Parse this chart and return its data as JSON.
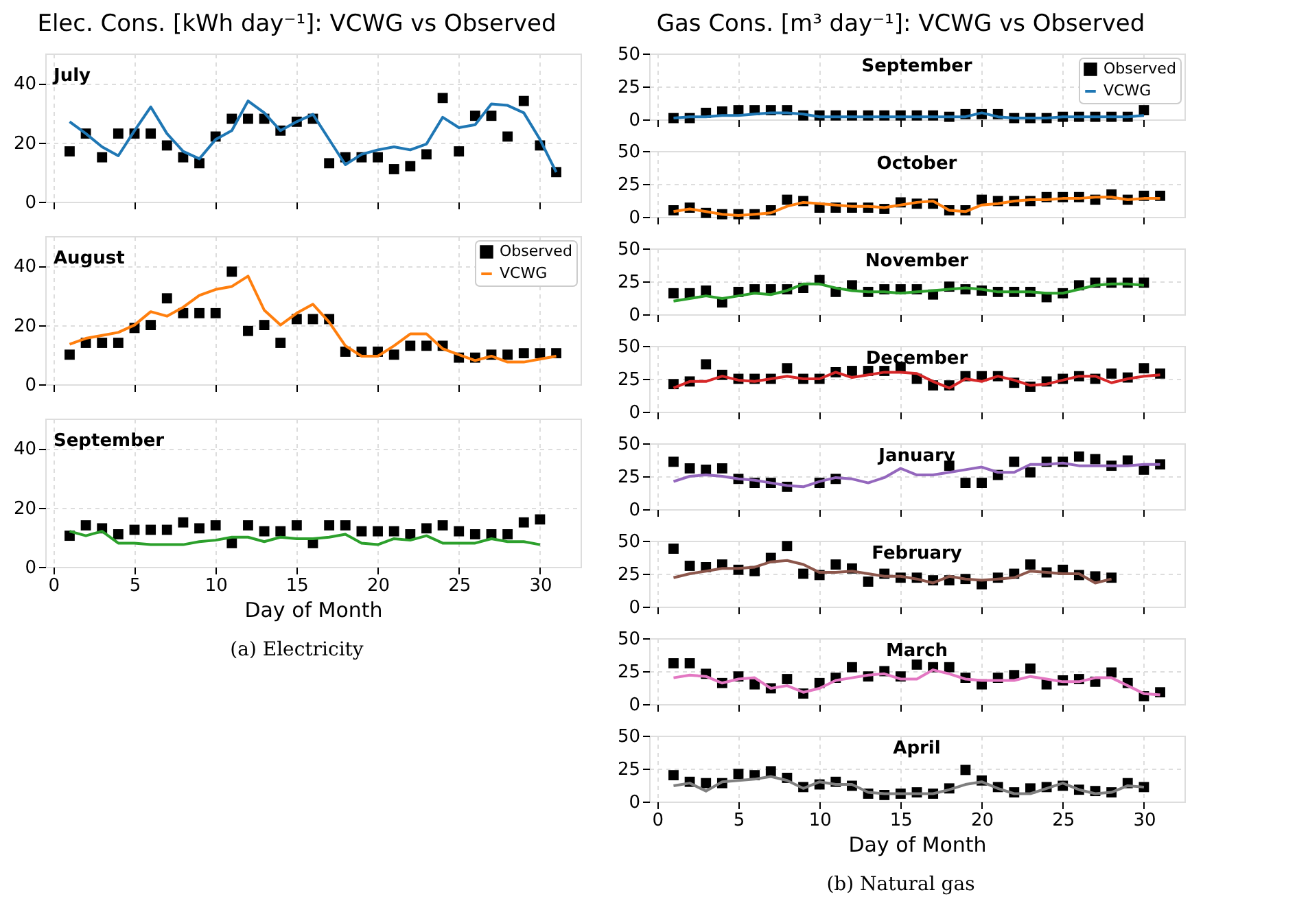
{
  "chart_data": [
    {
      "type": "line",
      "title": "July",
      "annotations": [
        "Elec. Cons. [kWh day⁻¹]: VCWG vs Observed"
      ],
      "x": [
        1,
        2,
        3,
        4,
        5,
        6,
        7,
        8,
        9,
        10,
        11,
        12,
        13,
        14,
        15,
        16,
        17,
        18,
        19,
        20,
        21,
        22,
        23,
        24,
        25,
        26,
        27,
        28,
        29,
        30,
        31
      ],
      "xlim": [
        -0.5,
        32.5
      ],
      "xticks": [
        0,
        5,
        10,
        15,
        20,
        25,
        30
      ],
      "ylim": [
        0,
        50
      ],
      "yticks": [
        0,
        20,
        40
      ],
      "grid": true,
      "tick_labels": "y",
      "series": [
        {
          "type": "scatter",
          "marker": "square",
          "color": "#000000",
          "values": [
            17,
            23,
            15,
            23,
            23,
            23,
            19,
            15,
            13,
            22,
            28,
            28,
            28,
            24,
            27,
            28,
            13,
            15,
            15,
            15,
            11,
            12,
            16,
            35,
            17,
            29,
            29,
            22,
            34,
            19,
            10
          ]
        },
        {
          "type": "line",
          "color": "#1f77b4",
          "values": [
            27,
            23,
            18.5,
            15.5,
            24,
            32,
            23,
            17,
            14.5,
            21,
            24,
            34,
            30,
            24,
            27,
            29.5,
            21,
            12.5,
            16,
            17.5,
            18.5,
            17.5,
            19.5,
            28.5,
            25,
            26,
            33,
            32.5,
            30,
            21,
            10
          ]
        }
      ]
    },
    {
      "type": "line",
      "title": "August",
      "x": [
        1,
        2,
        3,
        4,
        5,
        6,
        7,
        8,
        9,
        10,
        11,
        12,
        13,
        14,
        15,
        16,
        17,
        18,
        19,
        20,
        21,
        22,
        23,
        24,
        25,
        26,
        27,
        28,
        29,
        30,
        31
      ],
      "xlim": [
        -0.5,
        32.5
      ],
      "xticks": [
        0,
        5,
        10,
        15,
        20,
        25,
        30
      ],
      "ylim": [
        0,
        50
      ],
      "yticks": [
        0,
        20,
        40
      ],
      "grid": true,
      "tick_labels": "y",
      "legend": "top right",
      "series": [
        {
          "name": "Observed",
          "type": "scatter",
          "marker": "square",
          "color": "#000000",
          "values": [
            10,
            14,
            14,
            14,
            19,
            20,
            29,
            24,
            24,
            24,
            38,
            18,
            20,
            14,
            22,
            22,
            22,
            11,
            11,
            11,
            10,
            13,
            13,
            13,
            9,
            9,
            10,
            10,
            10.5,
            10.5,
            10.5
          ]
        },
        {
          "name": "VCWG",
          "type": "line",
          "color": "#ff7f0e",
          "values": [
            13.5,
            15.5,
            16.5,
            17.5,
            20,
            24.5,
            23,
            26,
            30,
            32,
            33,
            36.5,
            25,
            20,
            24,
            27,
            21,
            13,
            9.5,
            9.5,
            13,
            17,
            17,
            12,
            10,
            8,
            9.5,
            7.5,
            7.5,
            8.5,
            9.5
          ]
        }
      ]
    },
    {
      "type": "line",
      "title": "September",
      "xlabel": "Day of Month",
      "annotations": [
        "(a) Electricity"
      ],
      "x": [
        1,
        2,
        3,
        4,
        5,
        6,
        7,
        8,
        9,
        10,
        11,
        12,
        13,
        14,
        15,
        16,
        17,
        18,
        19,
        20,
        21,
        22,
        23,
        24,
        25,
        26,
        27,
        28,
        29,
        30
      ],
      "xlim": [
        -0.5,
        32.5
      ],
      "xticks": [
        0,
        5,
        10,
        15,
        20,
        25,
        30
      ],
      "ylim": [
        0,
        50
      ],
      "yticks": [
        0,
        20,
        40
      ],
      "grid": true,
      "series": [
        {
          "type": "scatter",
          "marker": "square",
          "color": "#000000",
          "values": [
            10.5,
            14,
            13,
            11,
            12.5,
            12.5,
            12.5,
            15,
            13,
            14,
            8,
            14,
            12,
            12,
            14,
            8,
            14,
            14,
            12,
            12,
            12,
            11,
            13,
            14,
            12,
            11,
            11,
            11,
            15,
            16
          ]
        },
        {
          "type": "line",
          "color": "#2ca02c",
          "values": [
            12,
            10.5,
            12,
            8,
            8,
            7.5,
            7.5,
            7.5,
            8.5,
            9,
            10,
            10,
            8.5,
            10,
            9.5,
            9.5,
            10,
            11,
            8,
            7.5,
            9.5,
            9,
            10.5,
            8,
            8,
            8,
            9.5,
            8.5,
            8.5,
            7.5
          ]
        }
      ]
    },
    {
      "type": "line",
      "title": "September",
      "annotations": [
        "Gas Cons. [m³ day⁻¹]: VCWG vs Observed"
      ],
      "x": [
        1,
        2,
        3,
        4,
        5,
        6,
        7,
        8,
        9,
        10,
        11,
        12,
        13,
        14,
        15,
        16,
        17,
        18,
        19,
        20,
        21,
        22,
        23,
        24,
        25,
        26,
        27,
        28,
        29,
        30
      ],
      "xlim": [
        -0.5,
        32.5
      ],
      "xticks": [
        0,
        5,
        10,
        15,
        20,
        25,
        30
      ],
      "ylim": [
        0,
        50
      ],
      "yticks": [
        0,
        25,
        50
      ],
      "grid": true,
      "tick_labels": "y",
      "legend": "top right",
      "series": [
        {
          "name": "Observed",
          "type": "scatter",
          "marker": "square",
          "color": "#000000",
          "values": [
            1,
            1,
            5,
            6,
            7,
            7,
            7,
            7,
            3,
            3,
            3,
            3,
            3,
            3,
            3,
            3,
            3,
            2,
            4,
            4,
            4,
            1,
            1,
            1,
            2,
            2,
            2,
            2,
            2,
            7
          ]
        },
        {
          "name": "VCWG",
          "type": "line",
          "color": "#1f77b4",
          "values": [
            1,
            2,
            2,
            3,
            3,
            4,
            5,
            5,
            4,
            2,
            2,
            2,
            2,
            2,
            2,
            2,
            2,
            2,
            2,
            5,
            2,
            1,
            1,
            1,
            2,
            2,
            2,
            2,
            2,
            3
          ]
        }
      ]
    },
    {
      "type": "line",
      "title": "October",
      "x": [
        1,
        2,
        3,
        4,
        5,
        6,
        7,
        8,
        9,
        10,
        11,
        12,
        13,
        14,
        15,
        16,
        17,
        18,
        19,
        20,
        21,
        22,
        23,
        24,
        25,
        26,
        27,
        28,
        29,
        30,
        31
      ],
      "xlim": [
        -0.5,
        32.5
      ],
      "xticks": [
        0,
        5,
        10,
        15,
        20,
        25,
        30
      ],
      "ylim": [
        0,
        50
      ],
      "yticks": [
        0,
        25,
        50
      ],
      "grid": true,
      "tick_labels": "y",
      "series": [
        {
          "type": "scatter",
          "marker": "square",
          "color": "#000000",
          "values": [
            5,
            7,
            3,
            2,
            2,
            2,
            5,
            13,
            12,
            7,
            7,
            7,
            7,
            6,
            11,
            10,
            10,
            5,
            5,
            13,
            12,
            12,
            12,
            15,
            15,
            15,
            13,
            17,
            13,
            16,
            16
          ]
        },
        {
          "type": "line",
          "color": "#ff7f0e",
          "values": [
            4,
            6,
            4,
            2,
            1,
            2,
            3,
            8,
            11,
            10,
            9,
            8,
            8,
            7,
            9,
            11,
            12,
            5,
            4,
            9,
            10,
            12,
            13,
            13,
            14,
            14,
            15,
            15,
            13,
            14,
            14
          ]
        }
      ]
    },
    {
      "type": "line",
      "title": "November",
      "x": [
        1,
        2,
        3,
        4,
        5,
        6,
        7,
        8,
        9,
        10,
        11,
        12,
        13,
        14,
        15,
        16,
        17,
        18,
        19,
        20,
        21,
        22,
        23,
        24,
        25,
        26,
        27,
        28,
        29,
        30
      ],
      "xlim": [
        -0.5,
        32.5
      ],
      "xticks": [
        0,
        5,
        10,
        15,
        20,
        25,
        30
      ],
      "ylim": [
        0,
        50
      ],
      "yticks": [
        0,
        25,
        50
      ],
      "grid": true,
      "tick_labels": "y",
      "series": [
        {
          "type": "scatter",
          "marker": "square",
          "color": "#000000",
          "values": [
            16,
            16,
            18,
            9,
            17,
            19,
            19,
            19,
            20,
            26,
            17,
            22,
            17,
            19,
            19,
            19,
            15,
            21,
            19,
            18,
            17,
            17,
            17,
            13,
            16,
            22,
            24,
            24,
            24,
            24
          ]
        },
        {
          "type": "line",
          "color": "#2ca02c",
          "values": [
            10,
            12,
            14,
            12,
            14,
            16,
            15,
            18,
            23,
            23,
            20,
            18,
            17,
            17,
            16,
            17,
            18,
            19,
            20,
            19,
            17,
            17,
            17,
            16,
            16,
            19,
            22,
            23,
            23,
            22
          ]
        }
      ]
    },
    {
      "type": "line",
      "title": "December",
      "x": [
        1,
        2,
        3,
        4,
        5,
        6,
        7,
        8,
        9,
        10,
        11,
        12,
        13,
        14,
        15,
        16,
        17,
        18,
        19,
        20,
        21,
        22,
        23,
        24,
        25,
        26,
        27,
        28,
        29,
        30,
        31
      ],
      "xlim": [
        -0.5,
        32.5
      ],
      "xticks": [
        0,
        5,
        10,
        15,
        20,
        25,
        30
      ],
      "ylim": [
        0,
        50
      ],
      "yticks": [
        0,
        25,
        50
      ],
      "grid": true,
      "tick_labels": "y",
      "series": [
        {
          "type": "scatter",
          "marker": "square",
          "color": "#000000",
          "values": [
            21,
            23,
            36,
            28,
            25,
            25,
            25,
            33,
            25,
            25,
            30,
            31,
            31,
            31,
            34,
            25,
            20,
            20,
            27,
            27,
            27,
            22,
            19,
            23,
            25,
            27,
            25,
            29,
            26,
            33,
            29
          ]
        },
        {
          "type": "line",
          "color": "#d62728",
          "values": [
            18,
            23,
            23,
            27,
            24,
            23,
            25,
            27,
            25,
            25,
            30,
            26,
            28,
            30,
            30,
            29,
            23,
            18,
            25,
            23,
            27,
            24,
            20,
            21,
            24,
            27,
            27,
            22,
            25,
            27,
            28
          ]
        }
      ]
    },
    {
      "type": "line",
      "title": "January",
      "x": [
        1,
        2,
        3,
        4,
        5,
        6,
        7,
        8,
        9,
        10,
        11,
        12,
        13,
        14,
        15,
        16,
        17,
        18,
        19,
        20,
        21,
        22,
        23,
        24,
        25,
        26,
        27,
        28,
        29,
        30,
        31
      ],
      "xlim": [
        -0.5,
        32.5
      ],
      "xticks": [
        0,
        5,
        10,
        15,
        20,
        25,
        30
      ],
      "ylim": [
        0,
        50
      ],
      "yticks": [
        0,
        25,
        50
      ],
      "grid": true,
      "tick_labels": "y",
      "series": [
        {
          "type": "scatter",
          "marker": "square",
          "color": "#000000",
          "values": [
            36,
            31,
            30,
            31,
            23,
            20,
            20,
            17,
            null,
            20,
            23,
            null,
            null,
            null,
            null,
            null,
            null,
            33,
            20,
            20,
            26,
            36,
            28,
            36,
            36,
            40,
            38,
            33,
            37,
            30,
            34
          ]
        },
        {
          "type": "line",
          "color": "#9467bd",
          "values": [
            21,
            25,
            26,
            25,
            23,
            22,
            20,
            18,
            17,
            21,
            24,
            23,
            20,
            24,
            31,
            26,
            26,
            28,
            30,
            32,
            28,
            28,
            34,
            34,
            35,
            33,
            33,
            33,
            33,
            34,
            34
          ]
        }
      ]
    },
    {
      "type": "line",
      "title": "February",
      "x": [
        1,
        2,
        3,
        4,
        5,
        6,
        7,
        8,
        9,
        10,
        11,
        12,
        13,
        14,
        15,
        16,
        17,
        18,
        19,
        20,
        21,
        22,
        23,
        24,
        25,
        26,
        27,
        28
      ],
      "xlim": [
        -0.5,
        32.5
      ],
      "xticks": [
        0,
        5,
        10,
        15,
        20,
        25,
        30
      ],
      "ylim": [
        0,
        50
      ],
      "yticks": [
        0,
        25,
        50
      ],
      "grid": true,
      "tick_labels": "y",
      "series": [
        {
          "type": "scatter",
          "marker": "square",
          "color": "#000000",
          "values": [
            44,
            31,
            30,
            32,
            28,
            27,
            37,
            46,
            25,
            24,
            32,
            29,
            19,
            25,
            22,
            22,
            20,
            20,
            21,
            17,
            22,
            25,
            32,
            26,
            28,
            24,
            23,
            22
          ]
        },
        {
          "type": "line",
          "color": "#8c564b",
          "values": [
            22,
            25,
            27,
            29,
            29,
            30,
            34,
            35,
            32,
            26,
            26,
            27,
            25,
            23,
            23,
            21,
            18,
            23,
            21,
            20,
            21,
            22,
            27,
            26,
            25,
            25,
            18,
            21
          ]
        }
      ]
    },
    {
      "type": "line",
      "title": "March",
      "x": [
        1,
        2,
        3,
        4,
        5,
        6,
        7,
        8,
        9,
        10,
        11,
        12,
        13,
        14,
        15,
        16,
        17,
        18,
        19,
        20,
        21,
        22,
        23,
        24,
        25,
        26,
        27,
        28,
        29,
        30,
        31
      ],
      "xlim": [
        -0.5,
        32.5
      ],
      "xticks": [
        0,
        5,
        10,
        15,
        20,
        25,
        30
      ],
      "ylim": [
        0,
        50
      ],
      "yticks": [
        0,
        25,
        50
      ],
      "grid": true,
      "tick_labels": "y",
      "series": [
        {
          "type": "scatter",
          "marker": "square",
          "color": "#000000",
          "values": [
            31,
            31,
            23,
            16,
            21,
            15,
            12,
            19,
            8,
            16,
            20,
            28,
            21,
            25,
            21,
            30,
            28,
            28,
            20,
            15,
            20,
            22,
            27,
            15,
            18,
            19,
            17,
            24,
            16,
            6,
            9
          ]
        },
        {
          "type": "line",
          "color": "#e377c2",
          "values": [
            20,
            22,
            21,
            16,
            19,
            20,
            12,
            14,
            9,
            12,
            18,
            20,
            22,
            23,
            19,
            19,
            26,
            23,
            19,
            18,
            18,
            18,
            21,
            19,
            17,
            17,
            20,
            20,
            14,
            8,
            7
          ]
        }
      ]
    },
    {
      "type": "line",
      "title": "April",
      "xlabel": "Day of Month",
      "annotations": [
        "(b) Natural gas"
      ],
      "x": [
        1,
        2,
        3,
        4,
        5,
        6,
        7,
        8,
        9,
        10,
        11,
        12,
        13,
        14,
        15,
        16,
        17,
        18,
        19,
        20,
        21,
        22,
        23,
        24,
        25,
        26,
        27,
        28,
        29,
        30
      ],
      "xlim": [
        -0.5,
        32.5
      ],
      "xticks": [
        0,
        5,
        10,
        15,
        20,
        25,
        30
      ],
      "ylim": [
        0,
        50
      ],
      "yticks": [
        0,
        25,
        50
      ],
      "grid": true,
      "series": [
        {
          "type": "scatter",
          "marker": "square",
          "color": "#000000",
          "values": [
            20,
            15,
            14,
            14,
            21,
            20,
            23,
            18,
            11,
            13,
            15,
            12,
            6,
            5,
            6,
            7,
            6,
            10,
            24,
            16,
            11,
            7,
            10,
            11,
            12,
            9,
            8,
            7,
            14,
            11
          ]
        },
        {
          "type": "line",
          "color": "#7f7f7f",
          "values": [
            12,
            14,
            8,
            15,
            16,
            17,
            19,
            16,
            10,
            15,
            13,
            13,
            7,
            6,
            6,
            6,
            6,
            9,
            13,
            15,
            10,
            6,
            6,
            10,
            14,
            9,
            6,
            7,
            12,
            11
          ]
        }
      ]
    }
  ]
}
